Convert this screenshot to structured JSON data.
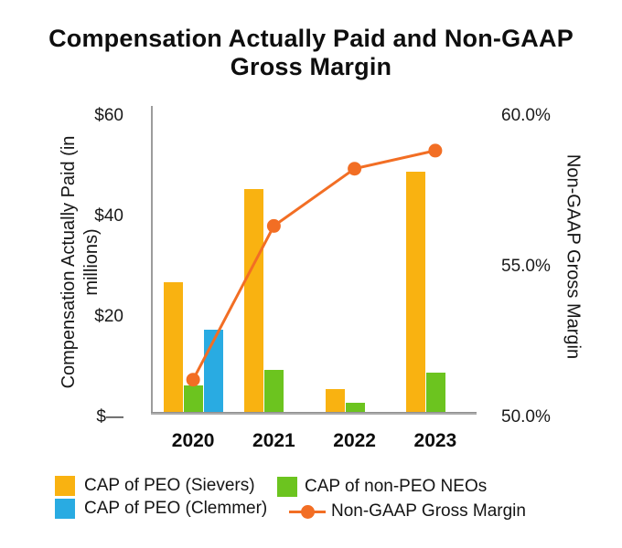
{
  "title_lines": [
    "Compensation Actually Paid and Non-GAAP",
    "Gross Margin"
  ],
  "chart_data": {
    "type": "combo-bar-line",
    "title": "Compensation Actually Paid and Non-GAAP Gross Margin",
    "categories": [
      "2020",
      "2021",
      "2022",
      "2023"
    ],
    "bar_series": [
      {
        "name": "CAP of PEO (Sievers)",
        "color": "#F9B211",
        "axis": "left",
        "values": [
          26,
          44.5,
          4.7,
          48
        ]
      },
      {
        "name": "CAP of non-PEO NEOs",
        "color": "#6CC41F",
        "axis": "left",
        "values": [
          5.5,
          8.5,
          2,
          8
        ]
      },
      {
        "name": "CAP of PEO (Clemmer)",
        "color": "#29ABE2",
        "axis": "left",
        "values": [
          16.5,
          null,
          null,
          null
        ]
      }
    ],
    "line_series": {
      "name": "Non-GAAP Gross Margin",
      "color": "#F26E24",
      "axis": "right",
      "values": [
        51.1,
        56.2,
        58.1,
        58.7
      ]
    },
    "left_axis": {
      "title": "Compensation Actually Paid (in millions)",
      "tick_labels": [
        "$60",
        "$40",
        "$20",
        "$—"
      ],
      "tick_values": [
        60,
        40,
        20,
        0
      ],
      "range": [
        0,
        60
      ]
    },
    "right_axis": {
      "title": "Non-GAAP Gross Margin",
      "tick_labels": [
        "60.0%",
        "55.0%",
        "50.0%"
      ],
      "tick_values": [
        60,
        55,
        50
      ],
      "range": [
        50,
        60
      ]
    },
    "grid": false,
    "legend_position": "bottom"
  },
  "legend": [
    {
      "label": "CAP of PEO (Sievers)",
      "color": "#F9B211",
      "marker": "square"
    },
    {
      "label": "CAP of PEO (Clemmer)",
      "color": "#29ABE2",
      "marker": "square"
    },
    {
      "label": "CAP of non-PEO NEOs",
      "color": "#6CC41F",
      "marker": "square"
    },
    {
      "label": "Non-GAAP Gross Margin",
      "color": "#F26E24",
      "marker": "line-dot"
    }
  ]
}
